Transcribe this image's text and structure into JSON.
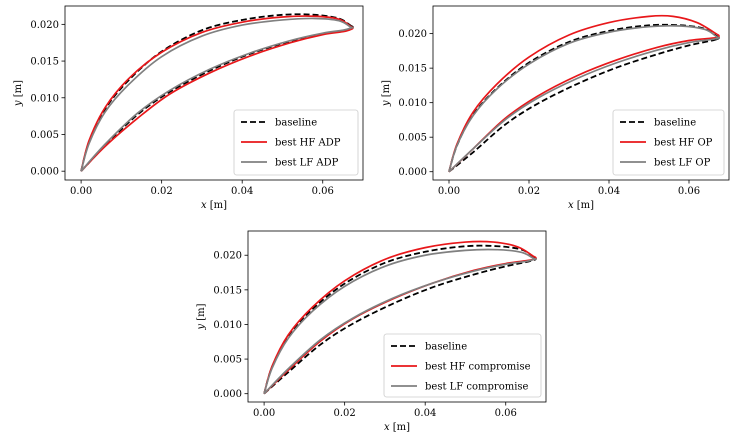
{
  "chart_data": [
    {
      "type": "line",
      "xlabel_var": "x",
      "xlabel_unit": " [m]",
      "ylabel_var": "y",
      "ylabel_unit": " [m]",
      "xlim": [
        -0.004,
        0.07
      ],
      "ylim": [
        -0.0012,
        0.0225
      ],
      "xticks": [
        0.0,
        0.02,
        0.04,
        0.06
      ],
      "xtick_labels": [
        "0.00",
        "0.02",
        "0.04",
        "0.06"
      ],
      "yticks": [
        0.0,
        0.005,
        0.01,
        0.015,
        0.02
      ],
      "ytick_labels": [
        "0.000",
        "0.005",
        "0.010",
        "0.015",
        "0.020"
      ],
      "legend_position": "lower-right",
      "series": [
        {
          "name": "baseline",
          "color": "#000000",
          "dash": true,
          "upper": [
            [
              0.0,
              0.0
            ],
            [
              0.002,
              0.004
            ],
            [
              0.006,
              0.0085
            ],
            [
              0.012,
              0.0125
            ],
            [
              0.02,
              0.0163
            ],
            [
              0.03,
              0.0192
            ],
            [
              0.04,
              0.0206
            ],
            [
              0.05,
              0.0213
            ],
            [
              0.058,
              0.0213
            ],
            [
              0.064,
              0.0208
            ],
            [
              0.067,
              0.0198
            ]
          ],
          "lower": [
            [
              0.0,
              0.0
            ],
            [
              0.006,
              0.0035
            ],
            [
              0.014,
              0.0077
            ],
            [
              0.022,
              0.0108
            ],
            [
              0.032,
              0.0137
            ],
            [
              0.042,
              0.016
            ],
            [
              0.052,
              0.0177
            ],
            [
              0.06,
              0.0187
            ],
            [
              0.065,
              0.0191
            ],
            [
              0.067,
              0.0194
            ]
          ]
        },
        {
          "name": "best HF ADP",
          "color": "#e8171a",
          "dash": false,
          "upper": [
            [
              0.0,
              0.0
            ],
            [
              0.002,
              0.0042
            ],
            [
              0.006,
              0.0087
            ],
            [
              0.012,
              0.0127
            ],
            [
              0.02,
              0.0162
            ],
            [
              0.03,
              0.0189
            ],
            [
              0.04,
              0.0203
            ],
            [
              0.05,
              0.021
            ],
            [
              0.058,
              0.0211
            ],
            [
              0.064,
              0.0207
            ],
            [
              0.067,
              0.0197
            ]
          ],
          "lower": [
            [
              0.0,
              0.0
            ],
            [
              0.006,
              0.0034
            ],
            [
              0.014,
              0.0072
            ],
            [
              0.022,
              0.0105
            ],
            [
              0.032,
              0.0134
            ],
            [
              0.042,
              0.0157
            ],
            [
              0.052,
              0.0175
            ],
            [
              0.06,
              0.0186
            ],
            [
              0.065,
              0.019
            ],
            [
              0.067,
              0.0193
            ]
          ]
        },
        {
          "name": "best LF ADP",
          "color": "#808080",
          "dash": false,
          "upper": [
            [
              0.0,
              0.0
            ],
            [
              0.002,
              0.0038
            ],
            [
              0.006,
              0.0081
            ],
            [
              0.012,
              0.0119
            ],
            [
              0.02,
              0.0156
            ],
            [
              0.03,
              0.0184
            ],
            [
              0.04,
              0.0199
            ],
            [
              0.05,
              0.0206
            ],
            [
              0.058,
              0.0208
            ],
            [
              0.064,
              0.0205
            ],
            [
              0.067,
              0.0196
            ]
          ],
          "lower": [
            [
              0.0,
              0.0
            ],
            [
              0.006,
              0.0037
            ],
            [
              0.014,
              0.0079
            ],
            [
              0.022,
              0.011
            ],
            [
              0.032,
              0.0139
            ],
            [
              0.042,
              0.0161
            ],
            [
              0.052,
              0.0178
            ],
            [
              0.06,
              0.0188
            ],
            [
              0.065,
              0.0192
            ],
            [
              0.067,
              0.0195
            ]
          ]
        }
      ]
    },
    {
      "type": "line",
      "xlabel_var": "x",
      "xlabel_unit": " [m]",
      "ylabel_var": "y",
      "ylabel_unit": " [m]",
      "xlim": [
        -0.004,
        0.07
      ],
      "ylim": [
        -0.0012,
        0.024
      ],
      "xticks": [
        0.0,
        0.02,
        0.04,
        0.06
      ],
      "xtick_labels": [
        "0.00",
        "0.02",
        "0.04",
        "0.06"
      ],
      "yticks": [
        0.0,
        0.005,
        0.01,
        0.015,
        0.02
      ],
      "ytick_labels": [
        "0.000",
        "0.005",
        "0.010",
        "0.015",
        "0.020"
      ],
      "legend_position": "lower-right",
      "series": [
        {
          "name": "baseline",
          "color": "#000000",
          "dash": true,
          "upper": [
            [
              0.0,
              0.0
            ],
            [
              0.002,
              0.0038
            ],
            [
              0.006,
              0.0082
            ],
            [
              0.012,
              0.0121
            ],
            [
              0.02,
              0.0158
            ],
            [
              0.03,
              0.0188
            ],
            [
              0.04,
              0.0204
            ],
            [
              0.05,
              0.0212
            ],
            [
              0.058,
              0.0212
            ],
            [
              0.064,
              0.0207
            ],
            [
              0.067,
              0.0196
            ]
          ],
          "lower": [
            [
              0.0,
              0.0
            ],
            [
              0.006,
              0.0028
            ],
            [
              0.014,
              0.0068
            ],
            [
              0.022,
              0.0098
            ],
            [
              0.032,
              0.0127
            ],
            [
              0.042,
              0.0151
            ],
            [
              0.052,
              0.017
            ],
            [
              0.06,
              0.0183
            ],
            [
              0.065,
              0.0189
            ],
            [
              0.067,
              0.0192
            ]
          ]
        },
        {
          "name": "best HF OP",
          "color": "#e8171a",
          "dash": false,
          "upper": [
            [
              0.0,
              0.0
            ],
            [
              0.002,
              0.004
            ],
            [
              0.006,
              0.0086
            ],
            [
              0.012,
              0.0127
            ],
            [
              0.02,
              0.0166
            ],
            [
              0.03,
              0.0198
            ],
            [
              0.04,
              0.0216
            ],
            [
              0.05,
              0.0225
            ],
            [
              0.056,
              0.0225
            ],
            [
              0.062,
              0.0216
            ],
            [
              0.067,
              0.0199
            ]
          ],
          "lower": [
            [
              0.0,
              0.0
            ],
            [
              0.006,
              0.0033
            ],
            [
              0.014,
              0.0077
            ],
            [
              0.022,
              0.0109
            ],
            [
              0.032,
              0.0139
            ],
            [
              0.042,
              0.0162
            ],
            [
              0.052,
              0.018
            ],
            [
              0.06,
              0.019
            ],
            [
              0.065,
              0.0193
            ],
            [
              0.067,
              0.0194
            ]
          ]
        },
        {
          "name": "best LF OP",
          "color": "#808080",
          "dash": false,
          "upper": [
            [
              0.0,
              0.0
            ],
            [
              0.002,
              0.0038
            ],
            [
              0.006,
              0.0081
            ],
            [
              0.012,
              0.012
            ],
            [
              0.02,
              0.0156
            ],
            [
              0.03,
              0.0186
            ],
            [
              0.04,
              0.0202
            ],
            [
              0.05,
              0.021
            ],
            [
              0.058,
              0.0211
            ],
            [
              0.064,
              0.0206
            ],
            [
              0.067,
              0.0195
            ]
          ],
          "lower": [
            [
              0.0,
              0.0
            ],
            [
              0.006,
              0.0033
            ],
            [
              0.014,
              0.0075
            ],
            [
              0.022,
              0.0106
            ],
            [
              0.032,
              0.0135
            ],
            [
              0.042,
              0.0158
            ],
            [
              0.052,
              0.0176
            ],
            [
              0.06,
              0.0187
            ],
            [
              0.065,
              0.0191
            ],
            [
              0.067,
              0.0193
            ]
          ]
        }
      ]
    },
    {
      "type": "line",
      "xlabel_var": "x",
      "xlabel_unit": " [m]",
      "ylabel_var": "y",
      "ylabel_unit": " [m]",
      "xlim": [
        -0.004,
        0.07
      ],
      "ylim": [
        -0.0012,
        0.0235
      ],
      "xticks": [
        0.0,
        0.02,
        0.04,
        0.06
      ],
      "xtick_labels": [
        "0.00",
        "0.02",
        "0.04",
        "0.06"
      ],
      "yticks": [
        0.0,
        0.005,
        0.01,
        0.015,
        0.02
      ],
      "ytick_labels": [
        "0.000",
        "0.005",
        "0.010",
        "0.015",
        "0.020"
      ],
      "legend_position": "lower-right",
      "series": [
        {
          "name": "baseline",
          "color": "#000000",
          "dash": true,
          "upper": [
            [
              0.0,
              0.0
            ],
            [
              0.002,
              0.0039
            ],
            [
              0.006,
              0.0083
            ],
            [
              0.012,
              0.0122
            ],
            [
              0.02,
              0.0159
            ],
            [
              0.03,
              0.0189
            ],
            [
              0.04,
              0.0205
            ],
            [
              0.05,
              0.0213
            ],
            [
              0.058,
              0.0213
            ],
            [
              0.064,
              0.0208
            ],
            [
              0.067,
              0.0197
            ]
          ],
          "lower": [
            [
              0.0,
              0.0
            ],
            [
              0.006,
              0.0031
            ],
            [
              0.014,
              0.0071
            ],
            [
              0.022,
              0.0101
            ],
            [
              0.032,
              0.013
            ],
            [
              0.042,
              0.0154
            ],
            [
              0.052,
              0.0172
            ],
            [
              0.06,
              0.0184
            ],
            [
              0.065,
              0.019
            ],
            [
              0.067,
              0.0193
            ]
          ]
        },
        {
          "name": "best HF compromise",
          "color": "#e8171a",
          "dash": false,
          "upper": [
            [
              0.0,
              0.0
            ],
            [
              0.002,
              0.004
            ],
            [
              0.006,
              0.0085
            ],
            [
              0.012,
              0.0125
            ],
            [
              0.02,
              0.0163
            ],
            [
              0.03,
              0.0194
            ],
            [
              0.04,
              0.0211
            ],
            [
              0.05,
              0.0219
            ],
            [
              0.057,
              0.0219
            ],
            [
              0.063,
              0.0212
            ],
            [
              0.067,
              0.0198
            ]
          ],
          "lower": [
            [
              0.0,
              0.0
            ],
            [
              0.006,
              0.0034
            ],
            [
              0.014,
              0.0076
            ],
            [
              0.022,
              0.0108
            ],
            [
              0.032,
              0.0137
            ],
            [
              0.042,
              0.016
            ],
            [
              0.052,
              0.0178
            ],
            [
              0.06,
              0.0188
            ],
            [
              0.065,
              0.0192
            ],
            [
              0.067,
              0.0194
            ]
          ]
        },
        {
          "name": "best LF compromise",
          "color": "#808080",
          "dash": false,
          "upper": [
            [
              0.0,
              0.0
            ],
            [
              0.002,
              0.0037
            ],
            [
              0.006,
              0.008
            ],
            [
              0.012,
              0.0119
            ],
            [
              0.02,
              0.0155
            ],
            [
              0.03,
              0.0184
            ],
            [
              0.04,
              0.02
            ],
            [
              0.05,
              0.0207
            ],
            [
              0.058,
              0.0208
            ],
            [
              0.064,
              0.0204
            ],
            [
              0.067,
              0.0195
            ]
          ],
          "lower": [
            [
              0.0,
              0.0
            ],
            [
              0.006,
              0.0036
            ],
            [
              0.014,
              0.0078
            ],
            [
              0.022,
              0.0109
            ],
            [
              0.032,
              0.0138
            ],
            [
              0.042,
              0.016
            ],
            [
              0.052,
              0.0177
            ],
            [
              0.06,
              0.0187
            ],
            [
              0.065,
              0.0191
            ],
            [
              0.067,
              0.0194
            ]
          ]
        }
      ]
    }
  ]
}
